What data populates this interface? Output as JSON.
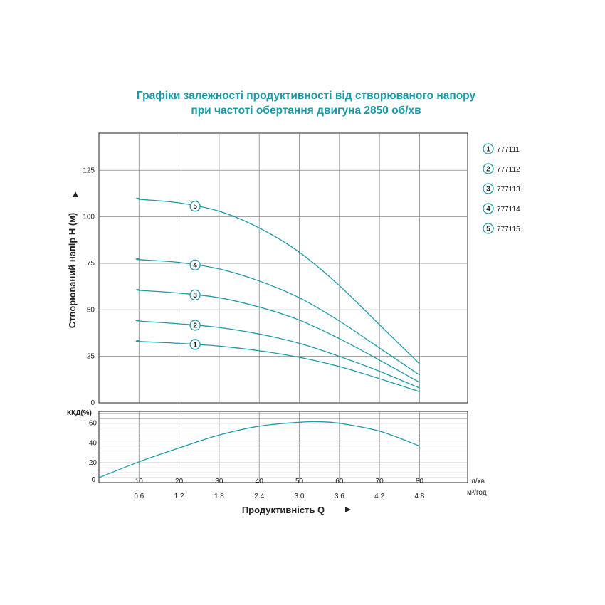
{
  "title": {
    "line1": "Графіки залежності продуктивності від створюваного напору",
    "line2": "при частоті обертання двигуна 2850 об/хв"
  },
  "colors": {
    "title": "#1a9aa6",
    "curve": "#1e9aa8",
    "grid": "#888888",
    "axis": "#222222"
  },
  "chart_data": [
    {
      "type": "line",
      "ylabel": "Створюваний напір Н (м)",
      "ylim": [
        0,
        145
      ],
      "yticks": [
        0,
        25,
        50,
        75,
        100,
        125
      ],
      "xlim": [
        0,
        92
      ],
      "xticks": [
        10,
        20,
        30,
        40,
        50,
        60,
        70,
        80
      ],
      "grid": true,
      "legend_position": "right",
      "series": [
        {
          "name": "777111",
          "marker": "1",
          "marker_x": 24,
          "x": [
            0,
            10,
            20,
            30,
            40,
            50,
            60,
            70,
            80
          ],
          "y": [
            33.5,
            33,
            32,
            30.5,
            28,
            24.5,
            19.5,
            13,
            6
          ]
        },
        {
          "name": "777112",
          "marker": "2",
          "marker_x": 24,
          "x": [
            0,
            10,
            20,
            30,
            40,
            50,
            60,
            70,
            80
          ],
          "y": [
            44.5,
            44,
            42.5,
            40.5,
            37,
            32,
            25,
            17,
            8
          ]
        },
        {
          "name": "777113",
          "marker": "3",
          "marker_x": 24,
          "x": [
            0,
            10,
            20,
            30,
            40,
            50,
            60,
            70,
            80
          ],
          "y": [
            61,
            60.5,
            59,
            56.5,
            51.5,
            44.5,
            34.5,
            23,
            11
          ]
        },
        {
          "name": "777114",
          "marker": "4",
          "marker_x": 24,
          "x": [
            0,
            10,
            20,
            30,
            40,
            50,
            60,
            70,
            80
          ],
          "y": [
            77.5,
            77,
            75.5,
            72,
            65.5,
            56.5,
            44,
            29.5,
            15
          ]
        },
        {
          "name": "777115",
          "marker": "5",
          "marker_x": 24,
          "x": [
            0,
            10,
            20,
            30,
            40,
            50,
            60,
            70,
            80
          ],
          "y": [
            110,
            109.5,
            107.5,
            103,
            94,
            81,
            63,
            42,
            21
          ]
        }
      ]
    },
    {
      "type": "line",
      "ylabel": "ККД(%)",
      "ylim": [
        0,
        72
      ],
      "yticks": [
        0,
        20,
        40,
        60
      ],
      "xlim": [
        0,
        92
      ],
      "xticks": [
        10,
        20,
        30,
        40,
        50,
        60,
        70,
        80
      ],
      "xticks_secondary": [
        "0.6",
        "1.2",
        "1.8",
        "2.4",
        "3.0",
        "3.6",
        "4.2",
        "4.8"
      ],
      "xlabel": "Продуктивність Q",
      "xunit_primary": "л/хв",
      "xunit_secondary": "м³/год",
      "grid": true,
      "series": [
        {
          "name": "ККД",
          "x": [
            0,
            10,
            20,
            30,
            40,
            50,
            55,
            60,
            70,
            80
          ],
          "y": [
            5,
            21,
            35,
            48,
            57,
            61,
            61.5,
            60,
            52,
            37
          ]
        }
      ]
    }
  ]
}
